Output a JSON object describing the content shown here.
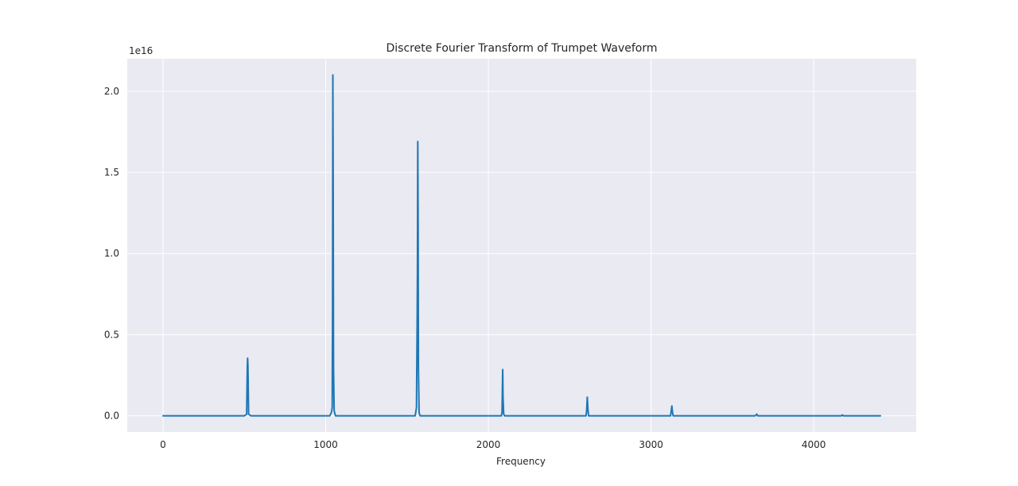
{
  "chart_data": {
    "type": "line",
    "title": "Discrete Fourier Transform of Trumpet Waveform",
    "xlabel": "Frequency",
    "ylabel": "",
    "y_offset_label": "1e16",
    "y_scale": 1e+16,
    "xlim": [
      -220,
      4630
    ],
    "ylim": [
      -0.1,
      2.2
    ],
    "x_ticks": [
      0,
      1000,
      2000,
      3000,
      4000
    ],
    "y_ticks": [
      0.0,
      0.5,
      1.0,
      1.5,
      2.0
    ],
    "x_tick_labels": [
      "0",
      "1000",
      "2000",
      "3000",
      "4000"
    ],
    "y_tick_labels": [
      "0.0",
      "0.5",
      "1.0",
      "1.5",
      "2.0"
    ],
    "grid": true,
    "background": "#eaeaf2",
    "grid_color": "#ffffff",
    "line_color": "#1f77b4",
    "series": [
      {
        "points": [
          [
            0,
            0.0
          ],
          [
            500,
            0.0
          ],
          [
            514,
            0.01
          ],
          [
            518,
            0.3
          ],
          [
            520,
            0.355
          ],
          [
            522,
            0.3
          ],
          [
            526,
            0.01
          ],
          [
            540,
            0.0
          ],
          [
            1025,
            0.0
          ],
          [
            1035,
            0.02
          ],
          [
            1040,
            0.05
          ],
          [
            1042,
            0.6
          ],
          [
            1044,
            2.1
          ],
          [
            1046,
            1.4
          ],
          [
            1048,
            0.3
          ],
          [
            1052,
            0.03
          ],
          [
            1060,
            0.0
          ],
          [
            1550,
            0.0
          ],
          [
            1558,
            0.05
          ],
          [
            1562,
            0.55
          ],
          [
            1564,
            0.9
          ],
          [
            1566,
            1.69
          ],
          [
            1568,
            1.2
          ],
          [
            1570,
            0.3
          ],
          [
            1574,
            0.02
          ],
          [
            1580,
            0.0
          ],
          [
            2080,
            0.0
          ],
          [
            2084,
            0.02
          ],
          [
            2086,
            0.15
          ],
          [
            2088,
            0.285
          ],
          [
            2090,
            0.12
          ],
          [
            2094,
            0.01
          ],
          [
            2100,
            0.0
          ],
          [
            2600,
            0.0
          ],
          [
            2604,
            0.03
          ],
          [
            2608,
            0.115
          ],
          [
            2612,
            0.04
          ],
          [
            2616,
            0.0
          ],
          [
            3120,
            0.0
          ],
          [
            3124,
            0.03
          ],
          [
            3128,
            0.06
          ],
          [
            3132,
            0.02
          ],
          [
            3136,
            0.0
          ],
          [
            3640,
            0.0
          ],
          [
            3650,
            0.01
          ],
          [
            3656,
            0.0
          ],
          [
            4170,
            0.0
          ],
          [
            4176,
            0.005
          ],
          [
            4182,
            0.0
          ],
          [
            4410,
            0.0
          ]
        ]
      }
    ]
  }
}
